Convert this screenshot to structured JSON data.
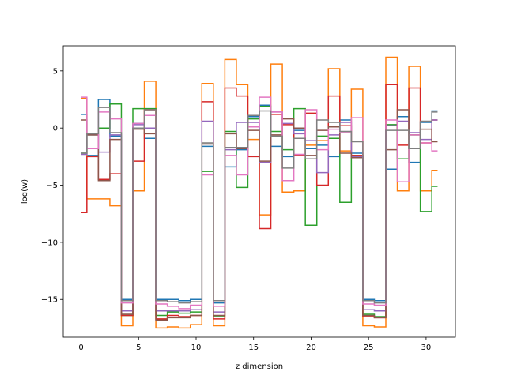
{
  "chart_data": {
    "type": "line",
    "drawstyle": "steps-mid",
    "xlabel": "z dimension",
    "ylabel": "log(w)",
    "xlim": [
      -1.55,
      32.55
    ],
    "ylim": [
      -18.3,
      7.2
    ],
    "xticks": [
      0,
      5,
      10,
      15,
      20,
      25,
      30
    ],
    "yticks": [
      5,
      0,
      -5,
      -10,
      -15
    ],
    "x": [
      0,
      1,
      2,
      3,
      4,
      5,
      6,
      7,
      8,
      9,
      10,
      11,
      12,
      13,
      14,
      15,
      16,
      17,
      18,
      19,
      20,
      21,
      22,
      23,
      24,
      25,
      26,
      27,
      28,
      29,
      30,
      31
    ],
    "series": [
      {
        "color": "#1f77b4",
        "values": [
          1.2,
          -2.4,
          2.5,
          -0.7,
          -15.0,
          0.4,
          -0.9,
          -15.0,
          -15.0,
          -15.1,
          -15.0,
          -1.6,
          -15.3,
          -3.4,
          -1.9,
          1.0,
          2.0,
          -1.6,
          -2.5,
          -0.2,
          -1.8,
          -1.5,
          -2.5,
          0.7,
          -2.2,
          -15.0,
          -15.1,
          -3.6,
          1.0,
          -3.0,
          0.5,
          1.5
        ]
      },
      {
        "color": "#ff7f0e",
        "values": [
          2.6,
          -6.2,
          -6.2,
          -6.8,
          -17.3,
          -5.5,
          4.1,
          -17.5,
          -17.4,
          -17.5,
          -17.2,
          3.9,
          -17.3,
          6.0,
          3.8,
          -1.0,
          -7.6,
          5.6,
          -5.6,
          -5.5,
          -1.5,
          -1.1,
          5.2,
          -2.0,
          3.4,
          -17.3,
          -17.4,
          6.2,
          -5.5,
          5.4,
          -5.5,
          -3.7
        ]
      },
      {
        "color": "#2ca02c",
        "values": [
          -2.2,
          -0.6,
          0.0,
          2.1,
          -16.4,
          1.7,
          1.7,
          -16.4,
          -16.1,
          -16.2,
          -16.1,
          -3.8,
          -16.5,
          -0.3,
          -5.2,
          0.8,
          1.9,
          -0.3,
          -1.9,
          1.7,
          -8.5,
          -0.7,
          -0.9,
          -6.5,
          -2.4,
          -16.3,
          -16.5,
          0.3,
          -2.7,
          -0.6,
          -7.3,
          -5.1
        ]
      },
      {
        "color": "#d62728",
        "values": [
          -7.4,
          -2.5,
          -4.5,
          -4.0,
          -16.4,
          -2.9,
          1.6,
          -16.7,
          -16.4,
          -16.5,
          -16.4,
          2.3,
          -16.7,
          3.5,
          2.8,
          -2.5,
          -8.8,
          1.2,
          0.3,
          -2.4,
          1.3,
          -5.0,
          2.8,
          0.2,
          -2.4,
          -16.5,
          -16.6,
          3.8,
          -1.5,
          3.5,
          -1.3,
          0.7
        ]
      },
      {
        "color": "#9467bd",
        "values": [
          -2.3,
          -0.6,
          -2.1,
          -0.6,
          -16.0,
          0.3,
          0.0,
          -16.0,
          -16.0,
          -16.0,
          -15.9,
          0.6,
          -16.1,
          -1.9,
          0.5,
          0.5,
          -3.0,
          1.4,
          0.4,
          -0.5,
          -1.1,
          -3.9,
          -0.6,
          0.5,
          -2.5,
          -15.9,
          -16.0,
          0.2,
          0.6,
          -0.4,
          -1.0,
          0.7
        ]
      },
      {
        "color": "#8c564b",
        "values": [
          0.7,
          -0.6,
          -4.6,
          -1.0,
          -16.3,
          -0.1,
          -0.5,
          -16.8,
          -16.6,
          -16.6,
          -16.4,
          -1.4,
          -16.4,
          -0.5,
          -1.8,
          -0.2,
          -2.9,
          -0.6,
          0.8,
          0.0,
          -2.4,
          -0.2,
          0.1,
          -2.2,
          -2.6,
          -16.4,
          -16.6,
          -1.9,
          1.6,
          -0.6,
          -0.1,
          -1.2
        ]
      },
      {
        "color": "#e377c2",
        "values": [
          2.7,
          -1.8,
          1.4,
          0.8,
          -15.3,
          0.4,
          1.1,
          -15.4,
          -15.6,
          -15.8,
          -15.5,
          -4.1,
          -15.6,
          -2.4,
          -4.1,
          0.1,
          2.7,
          1.4,
          -4.6,
          -2.3,
          1.6,
          -1.9,
          -0.1,
          -0.4,
          0.9,
          -15.4,
          -15.5,
          0.7,
          -4.7,
          -0.6,
          -1.3,
          -2.0
        ]
      },
      {
        "color": "#7f7f7f",
        "values": [
          -2.2,
          -0.5,
          1.8,
          -0.4,
          -15.1,
          0.0,
          1.6,
          -15.1,
          -15.2,
          -15.3,
          -15.2,
          -1.3,
          -15.1,
          -1.7,
          -1.7,
          1.1,
          1.5,
          -0.7,
          -3.5,
          -0.9,
          -2.7,
          0.7,
          0.5,
          -0.3,
          -1.2,
          -15.1,
          -15.3,
          -0.2,
          -0.2,
          -1.8,
          0.6,
          1.4
        ]
      }
    ]
  }
}
